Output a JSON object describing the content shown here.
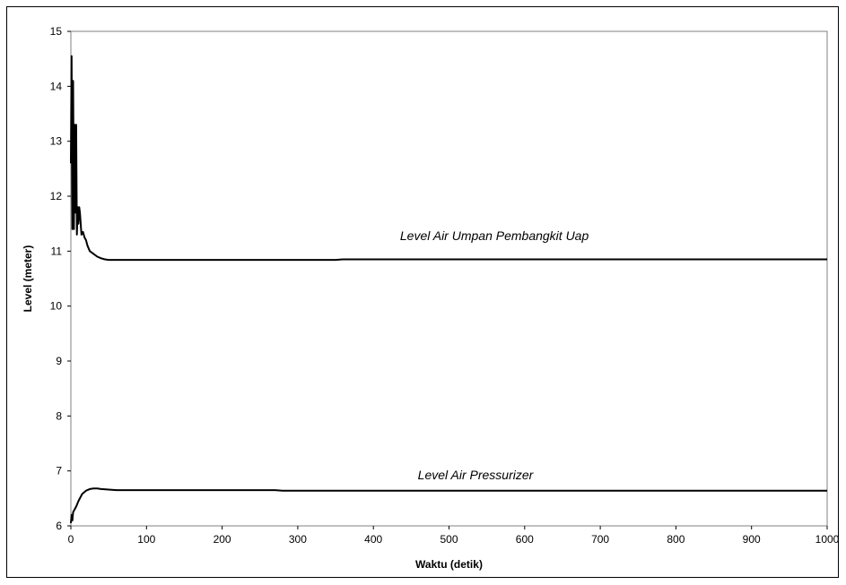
{
  "chart_data": {
    "type": "line",
    "title": "",
    "xlabel": "Waktu (detik)",
    "ylabel": "Level (meter)",
    "xlim": [
      0,
      1000
    ],
    "ylim": [
      6,
      15
    ],
    "x_ticks": [
      0,
      100,
      200,
      300,
      400,
      500,
      600,
      700,
      800,
      900,
      1000
    ],
    "y_ticks": [
      6,
      7,
      8,
      9,
      10,
      11,
      12,
      13,
      14,
      15
    ],
    "grid": false,
    "legend": "none",
    "line_color": "#000000",
    "series": [
      {
        "name": "Level Air Umpan Pembangkit Uap",
        "x": [
          0,
          1,
          2,
          3,
          4,
          5,
          6,
          7,
          8,
          9,
          10,
          11,
          12,
          14,
          16,
          18,
          20,
          22,
          25,
          30,
          35,
          40,
          45,
          50,
          60,
          80,
          100,
          200,
          300,
          350,
          360,
          400,
          500,
          600,
          700,
          800,
          900,
          1000
        ],
        "y": [
          12.6,
          14.55,
          11.4,
          14.1,
          11.4,
          13.3,
          11.7,
          13.3,
          11.3,
          11.8,
          11.5,
          11.8,
          11.7,
          11.3,
          11.35,
          11.25,
          11.2,
          11.1,
          11.0,
          10.95,
          10.9,
          10.87,
          10.85,
          10.84,
          10.84,
          10.84,
          10.84,
          10.84,
          10.84,
          10.84,
          10.85,
          10.85,
          10.85,
          10.85,
          10.85,
          10.85,
          10.85,
          10.85
        ]
      },
      {
        "name": "Level Air Pressurizer",
        "x": [
          0,
          1,
          2,
          3,
          5,
          7,
          10,
          15,
          20,
          25,
          30,
          35,
          40,
          50,
          60,
          80,
          100,
          200,
          270,
          280,
          300,
          400,
          500,
          600,
          700,
          800,
          900,
          1000
        ],
        "y": [
          6.05,
          6.2,
          6.1,
          6.25,
          6.3,
          6.35,
          6.45,
          6.58,
          6.64,
          6.67,
          6.68,
          6.68,
          6.67,
          6.66,
          6.65,
          6.65,
          6.65,
          6.65,
          6.65,
          6.64,
          6.64,
          6.64,
          6.64,
          6.64,
          6.64,
          6.64,
          6.64,
          6.64
        ]
      }
    ],
    "annotations": [
      {
        "text": "Level Air Umpan Pembangkit Uap",
        "x": 560,
        "y": 11.2
      },
      {
        "text": "Level Air Pressurizer",
        "x": 535,
        "y": 6.85
      }
    ]
  }
}
